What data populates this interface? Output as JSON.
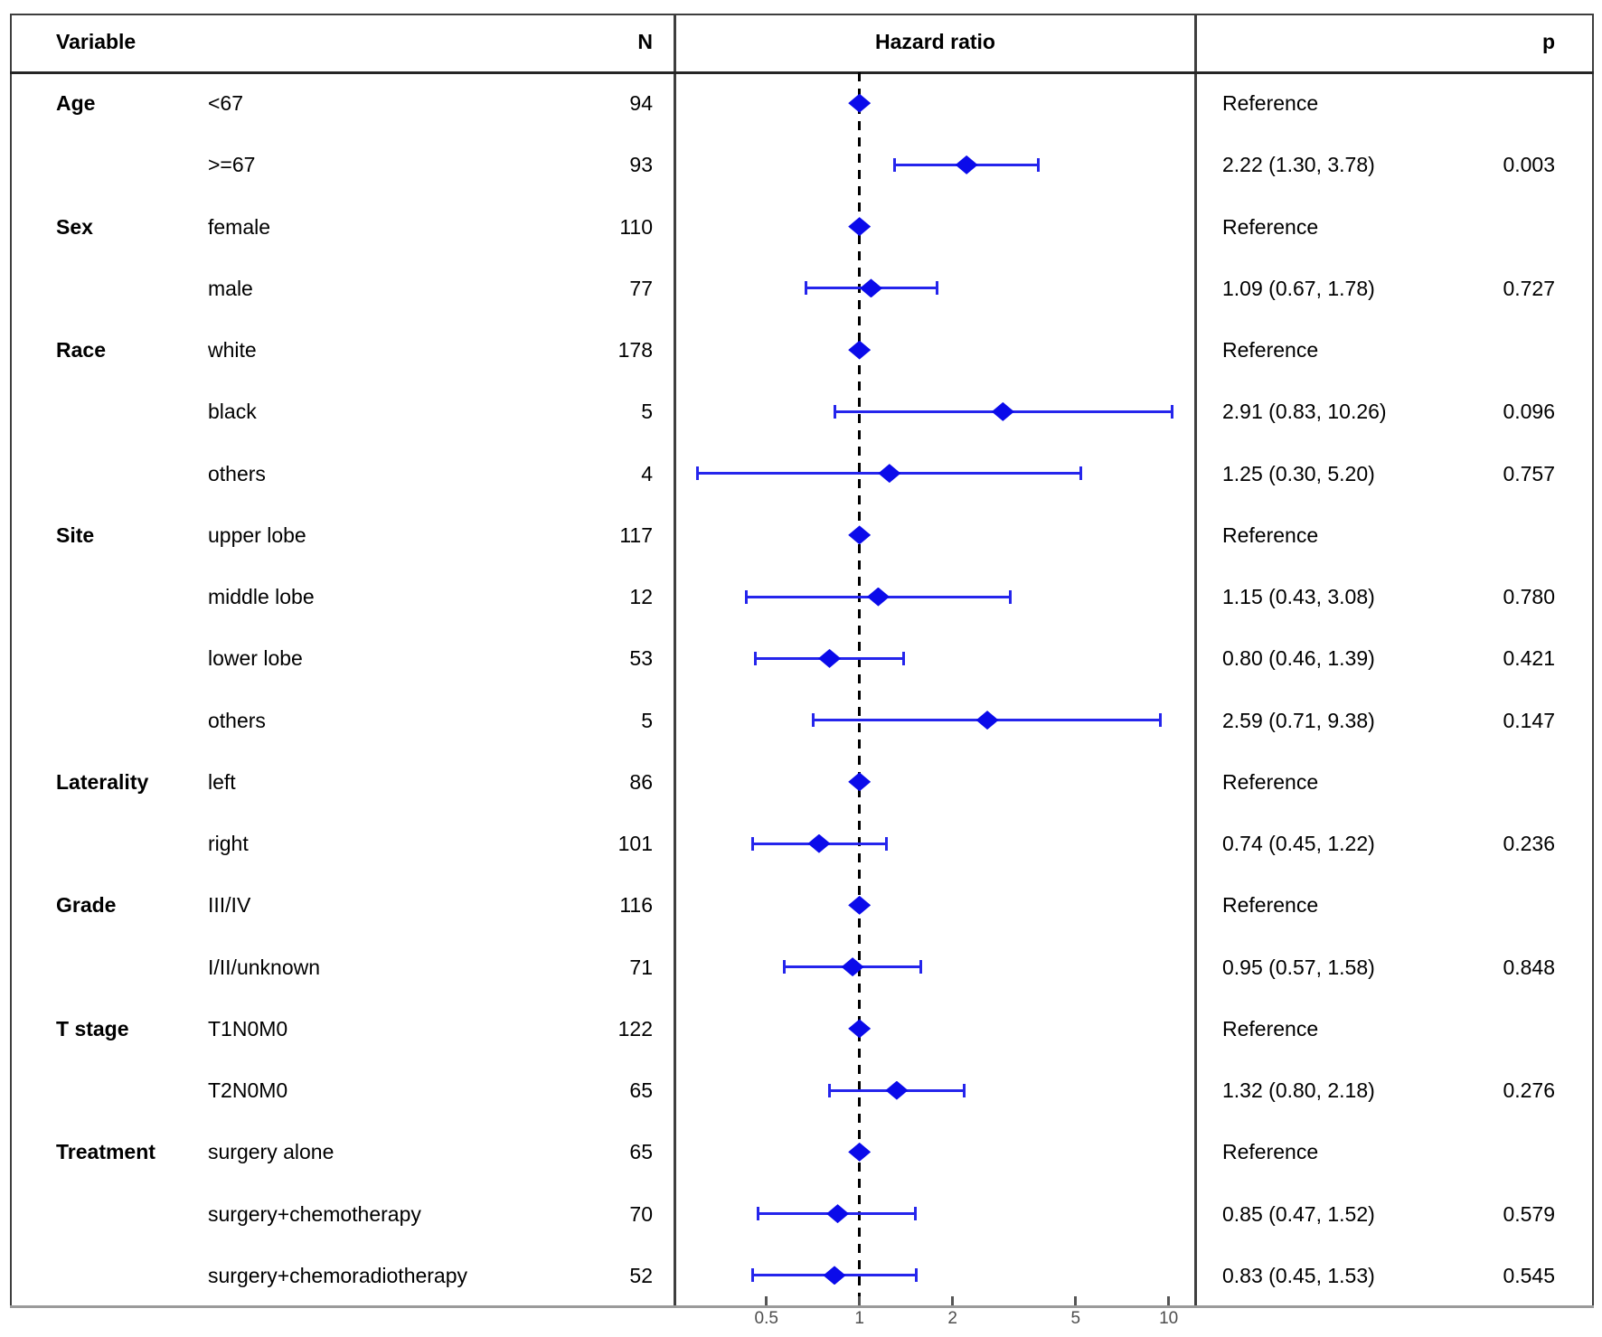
{
  "header": {
    "variable": "Variable",
    "n": "N",
    "hazard_ratio": "Hazard ratio",
    "p": "p"
  },
  "colors": {
    "marker_blue": "#0b0bea",
    "ci_line_blue": "#2525ec",
    "reference_line": "#000000",
    "axis_gray": "#9a9a9a",
    "tick_text_gray": "#4d4d4d",
    "frame_gray": "#3e3e3e"
  },
  "chart_data": {
    "type": "forest",
    "x_scale": "log10",
    "x_ticks": [
      0.5,
      1,
      2,
      5,
      10
    ],
    "xlim": [
      0.27,
      13
    ],
    "reference_line_at": 1,
    "reference_label": "Reference",
    "rows": [
      {
        "group": "Age",
        "level": "<67",
        "n": 94,
        "reference": true,
        "hr": 1.0,
        "hr_text": "Reference",
        "p": ""
      },
      {
        "group": "",
        "level": ">=67",
        "n": 93,
        "reference": false,
        "hr": 2.22,
        "low": 1.3,
        "high": 3.78,
        "hr_text": "2.22 (1.30, 3.78)",
        "p": "0.003"
      },
      {
        "group": "Sex",
        "level": "female",
        "n": 110,
        "reference": true,
        "hr": 1.0,
        "hr_text": "Reference",
        "p": ""
      },
      {
        "group": "",
        "level": "male",
        "n": 77,
        "reference": false,
        "hr": 1.09,
        "low": 0.67,
        "high": 1.78,
        "hr_text": "1.09 (0.67, 1.78)",
        "p": "0.727"
      },
      {
        "group": "Race",
        "level": "white",
        "n": 178,
        "reference": true,
        "hr": 1.0,
        "hr_text": "Reference",
        "p": ""
      },
      {
        "group": "",
        "level": "black",
        "n": 5,
        "reference": false,
        "hr": 2.91,
        "low": 0.83,
        "high": 10.26,
        "hr_text": "2.91 (0.83, 10.26)",
        "p": "0.096"
      },
      {
        "group": "",
        "level": "others",
        "n": 4,
        "reference": false,
        "hr": 1.25,
        "low": 0.3,
        "high": 5.2,
        "hr_text": "1.25 (0.30, 5.20)",
        "p": "0.757"
      },
      {
        "group": "Site",
        "level": "upper lobe",
        "n": 117,
        "reference": true,
        "hr": 1.0,
        "hr_text": "Reference",
        "p": ""
      },
      {
        "group": "",
        "level": "middle lobe",
        "n": 12,
        "reference": false,
        "hr": 1.15,
        "low": 0.43,
        "high": 3.08,
        "hr_text": "1.15 (0.43, 3.08)",
        "p": "0.780"
      },
      {
        "group": "",
        "level": "lower lobe",
        "n": 53,
        "reference": false,
        "hr": 0.8,
        "low": 0.46,
        "high": 1.39,
        "hr_text": "0.80 (0.46, 1.39)",
        "p": "0.421"
      },
      {
        "group": "",
        "level": "others",
        "n": 5,
        "reference": false,
        "hr": 2.59,
        "low": 0.71,
        "high": 9.38,
        "hr_text": "2.59 (0.71, 9.38)",
        "p": "0.147"
      },
      {
        "group": "Laterality",
        "level": "left",
        "n": 86,
        "reference": true,
        "hr": 1.0,
        "hr_text": "Reference",
        "p": ""
      },
      {
        "group": "",
        "level": "right",
        "n": 101,
        "reference": false,
        "hr": 0.74,
        "low": 0.45,
        "high": 1.22,
        "hr_text": "0.74 (0.45, 1.22)",
        "p": "0.236"
      },
      {
        "group": "Grade",
        "level": "III/IV",
        "n": 116,
        "reference": true,
        "hr": 1.0,
        "hr_text": "Reference",
        "p": ""
      },
      {
        "group": "",
        "level": "I/II/unknown",
        "n": 71,
        "reference": false,
        "hr": 0.95,
        "low": 0.57,
        "high": 1.58,
        "hr_text": "0.95 (0.57, 1.58)",
        "p": "0.848"
      },
      {
        "group": "T stage",
        "level": "T1N0M0",
        "n": 122,
        "reference": true,
        "hr": 1.0,
        "hr_text": "Reference",
        "p": ""
      },
      {
        "group": "",
        "level": "T2N0M0",
        "n": 65,
        "reference": false,
        "hr": 1.32,
        "low": 0.8,
        "high": 2.18,
        "hr_text": "1.32 (0.80, 2.18)",
        "p": "0.276"
      },
      {
        "group": "Treatment",
        "level": "surgery alone",
        "n": 65,
        "reference": true,
        "hr": 1.0,
        "hr_text": "Reference",
        "p": ""
      },
      {
        "group": "",
        "level": "surgery+chemotherapy",
        "n": 70,
        "reference": false,
        "hr": 0.85,
        "low": 0.47,
        "high": 1.52,
        "hr_text": "0.85 (0.47, 1.52)",
        "p": "0.579"
      },
      {
        "group": "",
        "level": "surgery+chemoradiotherapy",
        "n": 52,
        "reference": false,
        "hr": 0.83,
        "low": 0.45,
        "high": 1.53,
        "hr_text": "0.83 (0.45, 1.53)",
        "p": "0.545"
      }
    ]
  }
}
